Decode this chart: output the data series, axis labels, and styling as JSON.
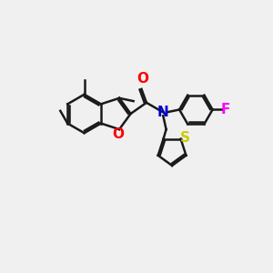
{
  "background_color": "#f0f0f0",
  "atom_colors": {
    "O": "#ff0000",
    "N": "#0000cc",
    "S": "#cccc00",
    "F": "#ff00ff"
  },
  "line_color": "#1a1a1a",
  "line_width": 1.8,
  "font_size": 11,
  "figsize": [
    3.0,
    3.0
  ],
  "dpi": 100
}
